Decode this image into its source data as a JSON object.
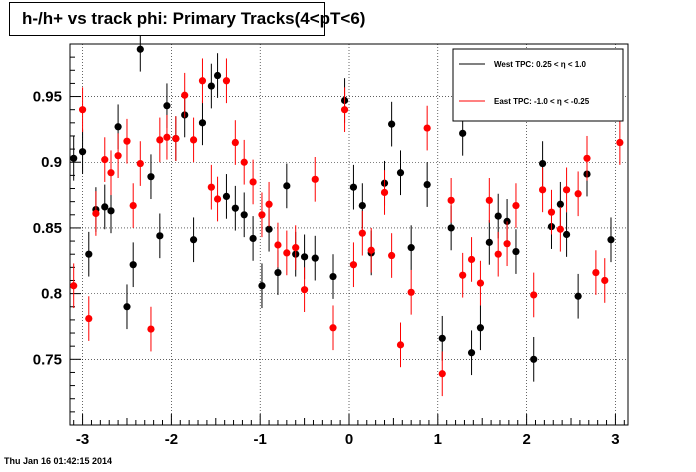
{
  "canvas": {
    "title": "h-/h+ vs track phi: Primary Tracks(4<pT<6)",
    "timestamp": "Thu Jan 16 01:42:15 2014"
  },
  "chart_data": {
    "type": "scatter",
    "title": "h-/h+ vs track phi: Primary Tracks(4<pT<6)",
    "xlabel": "",
    "ylabel": "",
    "xlim": [
      -3.14159,
      3.14159
    ],
    "ylim": [
      0.7,
      0.99
    ],
    "x_ticks": [
      -3,
      -2,
      -1,
      0,
      1,
      2,
      3
    ],
    "y_ticks": [
      0.75,
      0.8,
      0.85,
      0.9,
      0.95
    ],
    "grid": true,
    "legend_position": "top-right",
    "series": [
      {
        "name": "West TPC: 0.25 <     η < 1.0",
        "color": "#000000",
        "points": [
          [
            -3.1,
            0.903,
            0.017
          ],
          [
            -3.0,
            0.908,
            0.017
          ],
          [
            -2.93,
            0.83,
            0.017
          ],
          [
            -2.85,
            0.864,
            0.017
          ],
          [
            -2.75,
            0.866,
            0.017
          ],
          [
            -2.68,
            0.863,
            0.017
          ],
          [
            -2.6,
            0.927,
            0.017
          ],
          [
            -2.5,
            0.79,
            0.017
          ],
          [
            -2.43,
            0.822,
            0.017
          ],
          [
            -2.35,
            0.986,
            0.017
          ],
          [
            -2.23,
            0.889,
            0.017
          ],
          [
            -2.13,
            0.844,
            0.017
          ],
          [
            -2.05,
            0.943,
            0.017
          ],
          [
            -1.95,
            0.918,
            0.017
          ],
          [
            -1.85,
            0.936,
            0.017
          ],
          [
            -1.75,
            0.841,
            0.017
          ],
          [
            -1.65,
            0.93,
            0.017
          ],
          [
            -1.55,
            0.958,
            0.017
          ],
          [
            -1.48,
            0.966,
            0.017
          ],
          [
            -1.38,
            0.874,
            0.017
          ],
          [
            -1.28,
            0.865,
            0.017
          ],
          [
            -1.18,
            0.86,
            0.017
          ],
          [
            -1.08,
            0.842,
            0.017
          ],
          [
            -0.98,
            0.806,
            0.017
          ],
          [
            -0.9,
            0.849,
            0.017
          ],
          [
            -0.8,
            0.816,
            0.017
          ],
          [
            -0.7,
            0.882,
            0.017
          ],
          [
            -0.6,
            0.83,
            0.017
          ],
          [
            -0.5,
            0.828,
            0.017
          ],
          [
            -0.38,
            0.827,
            0.017
          ],
          [
            -0.18,
            0.813,
            0.017
          ],
          [
            -0.05,
            0.947,
            0.017
          ],
          [
            0.05,
            0.881,
            0.017
          ],
          [
            0.15,
            0.867,
            0.017
          ],
          [
            0.25,
            0.831,
            0.017
          ],
          [
            0.4,
            0.884,
            0.017
          ],
          [
            0.48,
            0.929,
            0.017
          ],
          [
            0.58,
            0.892,
            0.017
          ],
          [
            0.7,
            0.835,
            0.017
          ],
          [
            0.88,
            0.883,
            0.017
          ],
          [
            1.05,
            0.766,
            0.017
          ],
          [
            1.15,
            0.85,
            0.017
          ],
          [
            1.28,
            0.922,
            0.017
          ],
          [
            1.38,
            0.755,
            0.017
          ],
          [
            1.48,
            0.774,
            0.017
          ],
          [
            1.58,
            0.839,
            0.017
          ],
          [
            1.68,
            0.859,
            0.017
          ],
          [
            1.78,
            0.855,
            0.017
          ],
          [
            1.88,
            0.832,
            0.017
          ],
          [
            2.08,
            0.75,
            0.017
          ],
          [
            2.18,
            0.899,
            0.017
          ],
          [
            2.28,
            0.851,
            0.017
          ],
          [
            2.38,
            0.868,
            0.017
          ],
          [
            2.45,
            0.845,
            0.017
          ],
          [
            2.58,
            0.798,
            0.017
          ],
          [
            2.68,
            0.891,
            0.017
          ],
          [
            2.95,
            0.841,
            0.017
          ]
        ]
      },
      {
        "name": "East TPC: -1.0 <     η < -0.25",
        "color": "#ff0000",
        "points": [
          [
            -3.1,
            0.806,
            0.017
          ],
          [
            -3.0,
            0.94,
            0.017
          ],
          [
            -2.93,
            0.781,
            0.017
          ],
          [
            -2.85,
            0.861,
            0.017
          ],
          [
            -2.75,
            0.902,
            0.017
          ],
          [
            -2.68,
            0.892,
            0.017
          ],
          [
            -2.6,
            0.905,
            0.017
          ],
          [
            -2.5,
            0.916,
            0.017
          ],
          [
            -2.43,
            0.867,
            0.017
          ],
          [
            -2.35,
            0.899,
            0.017
          ],
          [
            -2.23,
            0.773,
            0.017
          ],
          [
            -2.13,
            0.917,
            0.017
          ],
          [
            -2.05,
            0.919,
            0.017
          ],
          [
            -1.95,
            0.918,
            0.017
          ],
          [
            -1.85,
            0.951,
            0.017
          ],
          [
            -1.75,
            0.917,
            0.017
          ],
          [
            -1.65,
            0.962,
            0.017
          ],
          [
            -1.55,
            0.881,
            0.017
          ],
          [
            -1.48,
            0.872,
            0.017
          ],
          [
            -1.38,
            0.962,
            0.017
          ],
          [
            -1.28,
            0.915,
            0.017
          ],
          [
            -1.18,
            0.9,
            0.017
          ],
          [
            -1.08,
            0.885,
            0.017
          ],
          [
            -0.98,
            0.86,
            0.017
          ],
          [
            -0.9,
            0.868,
            0.017
          ],
          [
            -0.8,
            0.837,
            0.017
          ],
          [
            -0.7,
            0.831,
            0.017
          ],
          [
            -0.6,
            0.835,
            0.017
          ],
          [
            -0.5,
            0.803,
            0.017
          ],
          [
            -0.38,
            0.887,
            0.017
          ],
          [
            -0.18,
            0.774,
            0.017
          ],
          [
            -0.05,
            0.94,
            0.017
          ],
          [
            0.05,
            0.822,
            0.017
          ],
          [
            0.15,
            0.846,
            0.017
          ],
          [
            0.25,
            0.833,
            0.017
          ],
          [
            0.4,
            0.877,
            0.017
          ],
          [
            0.48,
            0.829,
            0.017
          ],
          [
            0.58,
            0.761,
            0.017
          ],
          [
            0.7,
            0.801,
            0.017
          ],
          [
            0.88,
            0.926,
            0.017
          ],
          [
            1.05,
            0.739,
            0.017
          ],
          [
            1.15,
            0.871,
            0.017
          ],
          [
            1.28,
            0.814,
            0.017
          ],
          [
            1.38,
            0.826,
            0.017
          ],
          [
            1.48,
            0.808,
            0.017
          ],
          [
            1.58,
            0.871,
            0.017
          ],
          [
            1.68,
            0.83,
            0.017
          ],
          [
            1.78,
            0.838,
            0.017
          ],
          [
            1.88,
            0.867,
            0.017
          ],
          [
            2.08,
            0.799,
            0.017
          ],
          [
            2.18,
            0.879,
            0.017
          ],
          [
            2.28,
            0.862,
            0.017
          ],
          [
            2.38,
            0.849,
            0.017
          ],
          [
            2.45,
            0.879,
            0.017
          ],
          [
            2.58,
            0.876,
            0.017
          ],
          [
            2.68,
            0.903,
            0.017
          ],
          [
            2.78,
            0.816,
            0.017
          ],
          [
            2.88,
            0.81,
            0.017
          ],
          [
            3.05,
            0.915,
            0.017
          ]
        ]
      }
    ]
  }
}
